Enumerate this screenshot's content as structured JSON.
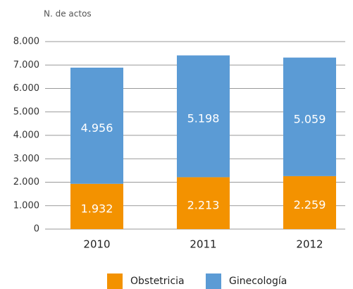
{
  "chart_data": {
    "type": "stacked_bar",
    "y_label": "N. de actos",
    "categories": [
      "2010",
      "2011",
      "2012"
    ],
    "series": [
      {
        "name": "Obstetricia",
        "color": "#f39200",
        "values": [
          1932,
          2213,
          2259
        ],
        "value_labels": [
          "1.932",
          "2.213",
          "2.259"
        ]
      },
      {
        "name": "Ginecología",
        "color": "#5b9bd5",
        "values": [
          4956,
          5198,
          5059
        ],
        "value_labels": [
          "4.956",
          "5.198",
          "5.059"
        ]
      }
    ],
    "ylim": [
      0,
      8000
    ],
    "yticks": [
      0,
      {
        "value": 1000,
        "label": "1.000"
      },
      {
        "value": 2000,
        "label": "2.000"
      },
      {
        "value": 3000,
        "label": "3.000"
      },
      {
        "value": 4000,
        "label": "4.000"
      },
      {
        "value": 5000,
        "label": "5.000"
      },
      {
        "value": 6000,
        "label": "6.000"
      },
      {
        "value": 7000,
        "label": "7.000"
      },
      {
        "value": 8000,
        "label": "8.000"
      }
    ],
    "grid": true,
    "legend": "bottom"
  }
}
